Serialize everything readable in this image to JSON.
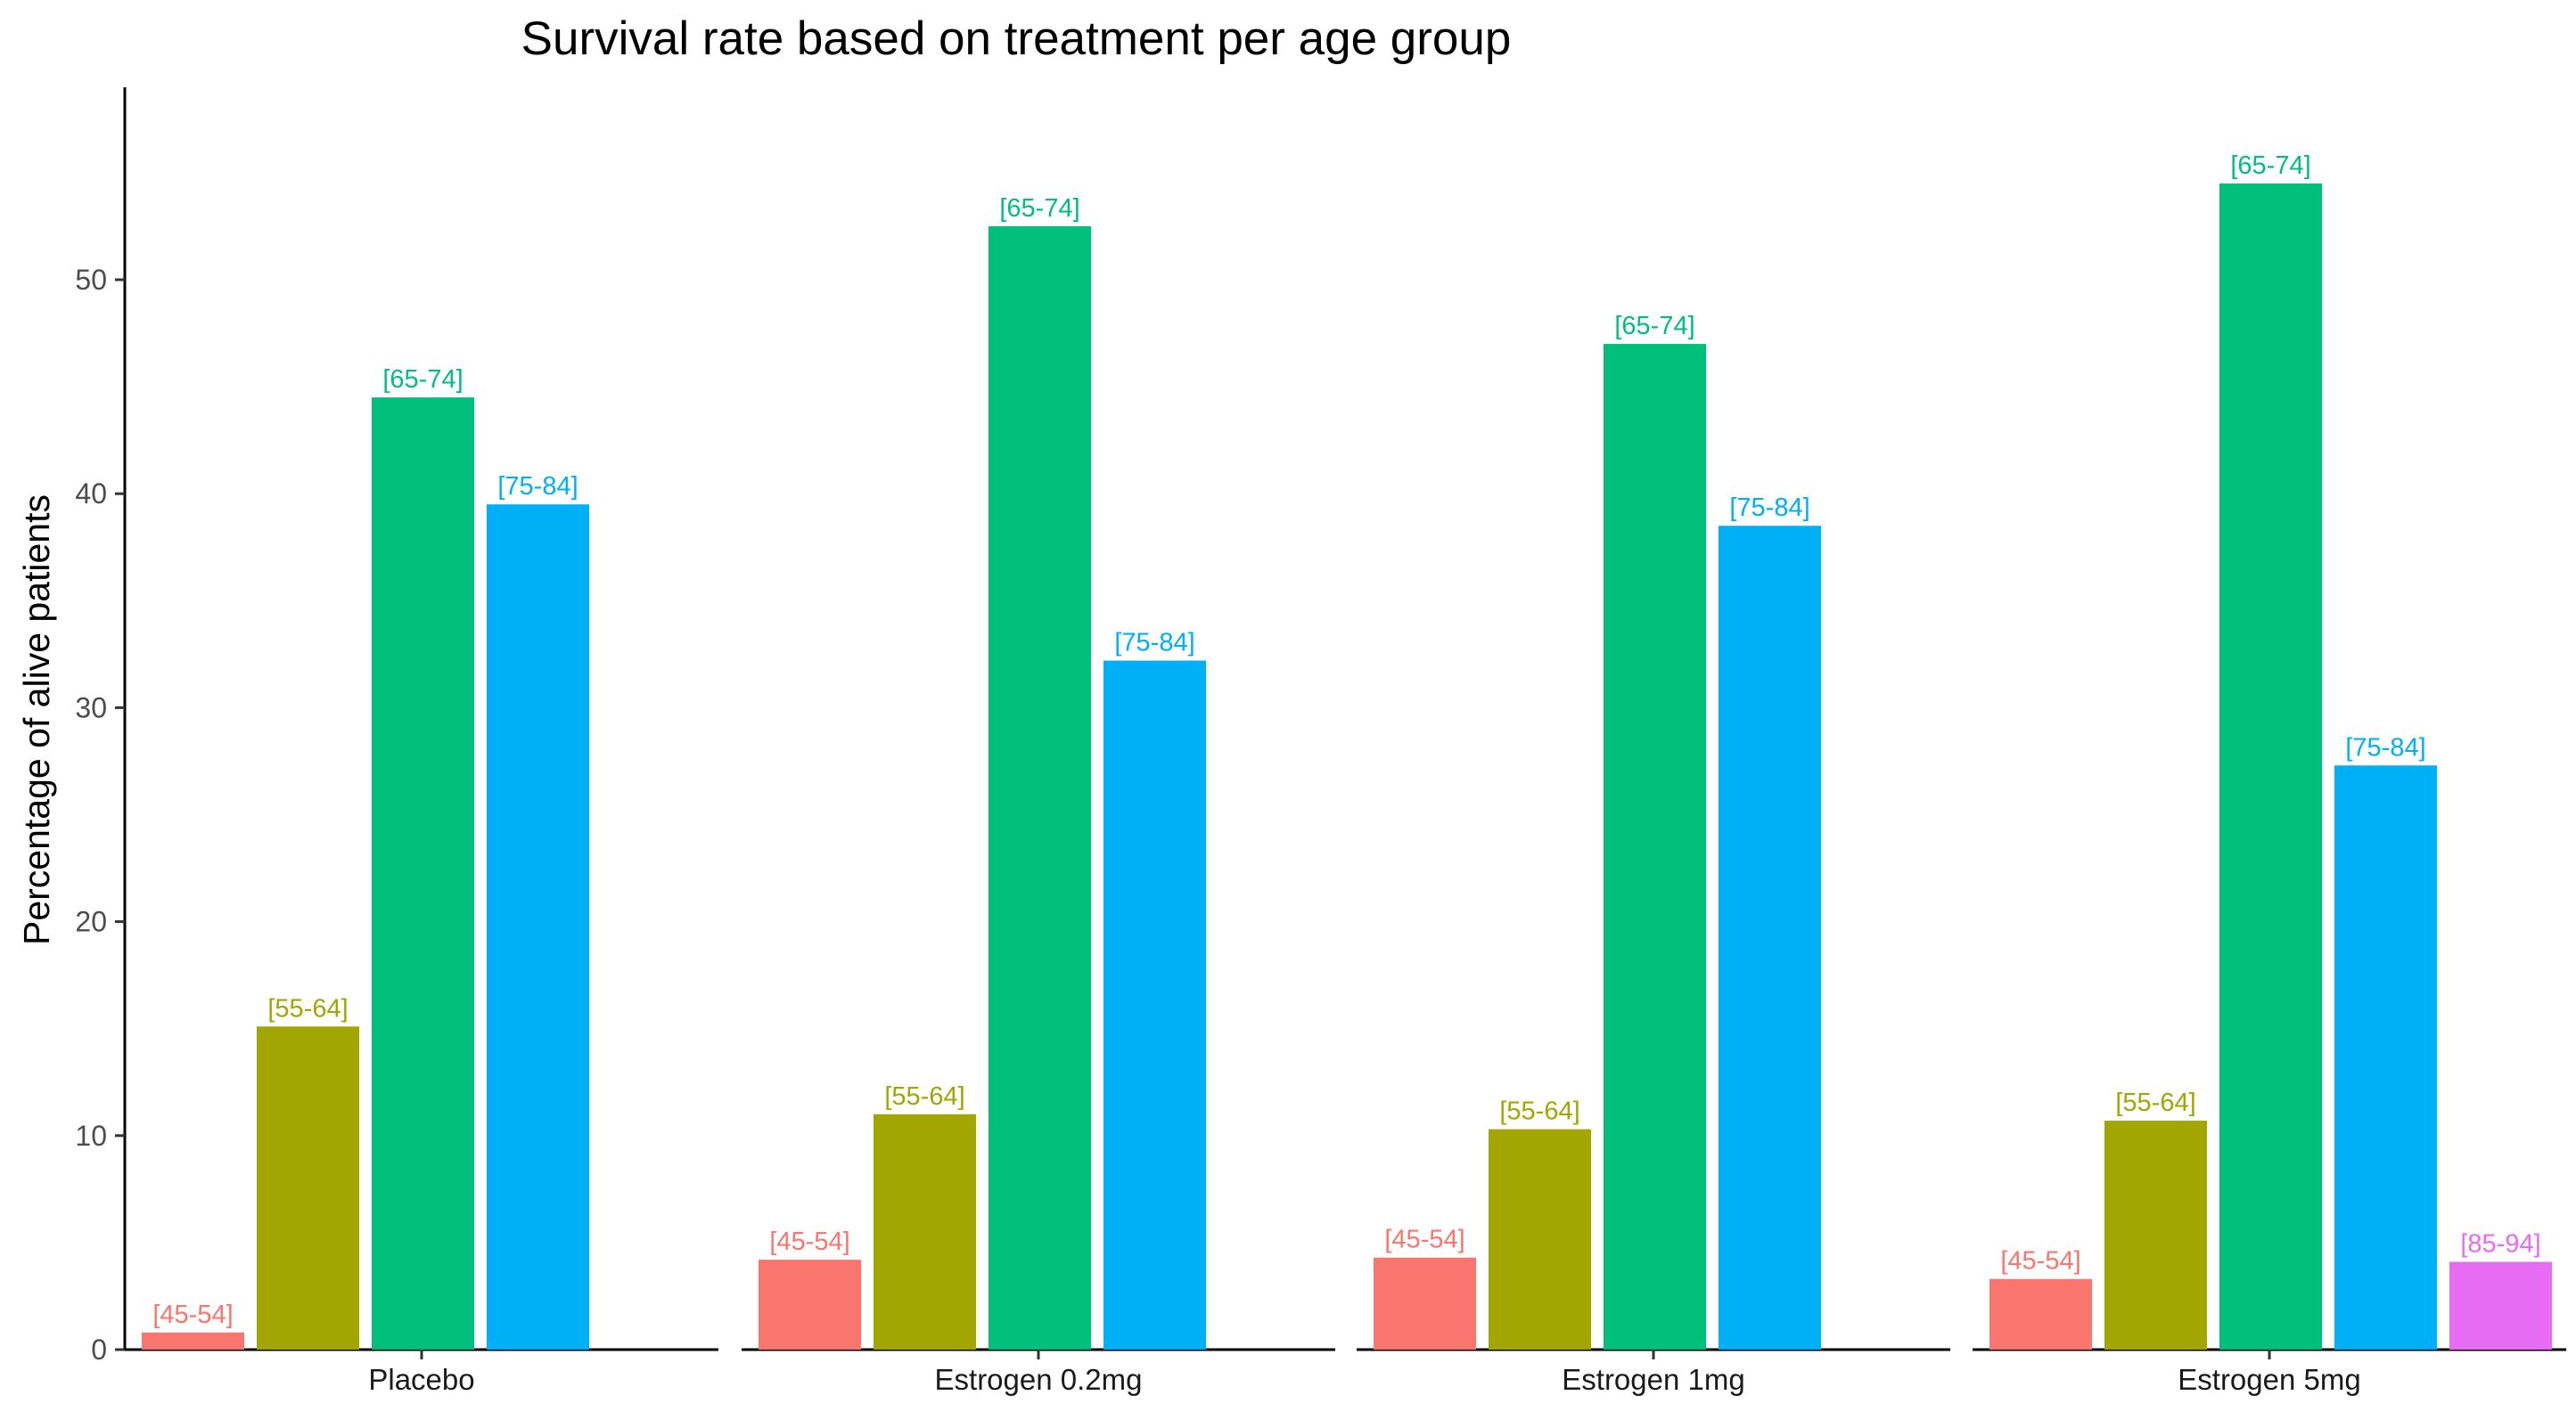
{
  "chart_data": {
    "type": "bar",
    "title": "Survival rate based on treatment per age group",
    "xlabel": "",
    "ylabel": "Percentage of alive patients",
    "ylim": [
      0,
      59
    ],
    "yticks": [
      0,
      10,
      20,
      30,
      40,
      50
    ],
    "grid": false,
    "legend": "none",
    "panels": [
      {
        "label": "Placebo",
        "bars": [
          {
            "group": "[45-54]",
            "value": 0.8,
            "color": "#F8766D"
          },
          {
            "group": "[55-64]",
            "value": 15.1,
            "color": "#A3A500"
          },
          {
            "group": "[65-74]",
            "value": 44.5,
            "color": "#00BF7D"
          },
          {
            "group": "[75-84]",
            "value": 39.5,
            "color": "#00B0F6"
          }
        ]
      },
      {
        "label": "Estrogen 0.2mg",
        "bars": [
          {
            "group": "[45-54]",
            "value": 4.2,
            "color": "#F8766D"
          },
          {
            "group": "[55-64]",
            "value": 11.0,
            "color": "#A3A500"
          },
          {
            "group": "[65-74]",
            "value": 52.5,
            "color": "#00BF7D"
          },
          {
            "group": "[75-84]",
            "value": 32.2,
            "color": "#00B0F6"
          }
        ]
      },
      {
        "label": "Estrogen 1mg",
        "bars": [
          {
            "group": "[45-54]",
            "value": 4.3,
            "color": "#F8766D"
          },
          {
            "group": "[55-64]",
            "value": 10.3,
            "color": "#A3A500"
          },
          {
            "group": "[65-74]",
            "value": 47.0,
            "color": "#00BF7D"
          },
          {
            "group": "[75-84]",
            "value": 38.5,
            "color": "#00B0F6"
          }
        ]
      },
      {
        "label": "Estrogen 5mg",
        "bars": [
          {
            "group": "[45-54]",
            "value": 3.3,
            "color": "#F8766D"
          },
          {
            "group": "[55-64]",
            "value": 10.7,
            "color": "#A3A500"
          },
          {
            "group": "[65-74]",
            "value": 54.5,
            "color": "#00BF7D"
          },
          {
            "group": "[75-84]",
            "value": 27.3,
            "color": "#00B0F6"
          },
          {
            "group": "[85-94]",
            "value": 4.1,
            "color": "#E76BF3"
          }
        ]
      }
    ]
  }
}
